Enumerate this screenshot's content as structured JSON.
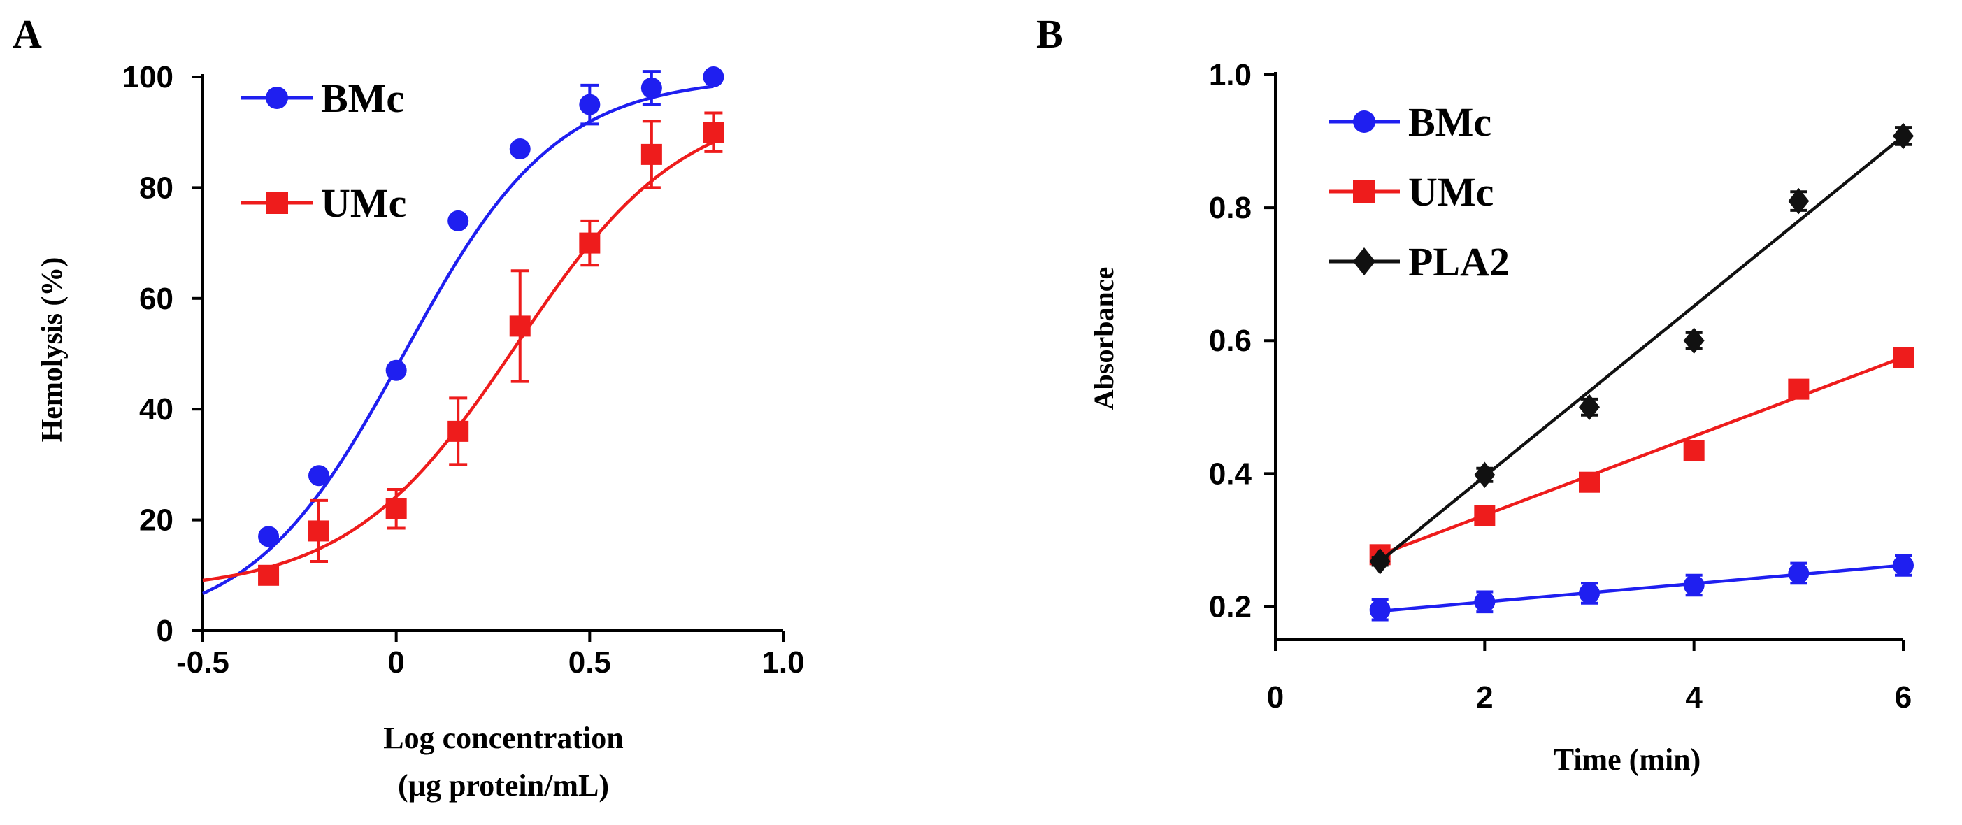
{
  "colors": {
    "bmc": "#1f1ff0",
    "umc": "#ee1c1c",
    "pla2": "#111111",
    "axis": "#000000"
  },
  "chart_data": [
    {
      "panel_label": "A",
      "type": "line",
      "title": "",
      "xlabel_line1": "Log concentration",
      "xlabel_line2": "(µg protein/mL)",
      "ylabel": "Hemolysis (%)",
      "xlim": [
        -0.5,
        1.0
      ],
      "ylim": [
        0,
        100
      ],
      "xticks": [
        -0.5,
        0,
        0.5,
        1.0
      ],
      "xtick_labels": [
        "-0.5",
        "0",
        "0.5",
        "1.0"
      ],
      "yticks": [
        0,
        20,
        40,
        60,
        80,
        100
      ],
      "ytick_labels": [
        "0",
        "20",
        "40",
        "60",
        "80",
        "100"
      ],
      "legend_position": "top-left",
      "series": [
        {
          "name": "BMc",
          "color_key": "bmc",
          "marker": "circle",
          "x": [
            -0.33,
            -0.2,
            0.0,
            0.16,
            0.32,
            0.5,
            0.66,
            0.82
          ],
          "y": [
            17,
            28,
            47,
            74,
            87,
            95,
            98,
            100
          ],
          "err": [
            0,
            0,
            0,
            0,
            0,
            3.5,
            3,
            0
          ],
          "fit": {
            "kind": "sigmoid",
            "bottom": 0,
            "top": 100,
            "logEC50": 0.02,
            "hill": 2.2,
            "x_from": -0.5,
            "x_to": 0.82
          }
        },
        {
          "name": "UMc",
          "color_key": "umc",
          "marker": "square",
          "x": [
            -0.33,
            -0.2,
            0.0,
            0.16,
            0.32,
            0.5,
            0.66,
            0.82
          ],
          "y": [
            10,
            18,
            22,
            36,
            55,
            70,
            86,
            90
          ],
          "err": [
            1.5,
            5.5,
            3.5,
            6,
            10,
            4,
            6,
            3.5
          ],
          "fit": {
            "kind": "sigmoid",
            "bottom": 7,
            "top": 96,
            "logEC50": 0.31,
            "hill": 2.0,
            "x_from": -0.5,
            "x_to": 0.82
          }
        }
      ]
    },
    {
      "panel_label": "B",
      "type": "line",
      "title": "",
      "xlabel": "Time (min)",
      "ylabel": "Absorbance",
      "xlim": [
        0,
        6
      ],
      "ylim": [
        0.15,
        1.0
      ],
      "xticks": [
        0,
        2,
        4,
        6
      ],
      "xtick_labels": [
        "0",
        "2",
        "4",
        "6"
      ],
      "yticks": [
        0.2,
        0.4,
        0.6,
        0.8,
        1.0
      ],
      "ytick_labels": [
        "0.2",
        "0.4",
        "0.6",
        "0.8",
        "1.0"
      ],
      "legend_position": "top-left",
      "series": [
        {
          "name": "BMc",
          "color_key": "bmc",
          "marker": "circle",
          "x": [
            1,
            2,
            3,
            4,
            5,
            6
          ],
          "y": [
            0.195,
            0.207,
            0.22,
            0.232,
            0.25,
            0.262
          ],
          "err": [
            0.015,
            0.015,
            0.015,
            0.015,
            0.015,
            0.015
          ],
          "fit": {
            "kind": "linear",
            "x_from": 1,
            "x_to": 6,
            "y_from": 0.193,
            "y_to": 0.262
          }
        },
        {
          "name": "UMc",
          "color_key": "umc",
          "marker": "square",
          "x": [
            1,
            2,
            3,
            4,
            5,
            6
          ],
          "y": [
            0.278,
            0.337,
            0.387,
            0.435,
            0.527,
            0.575
          ],
          "err": [
            0.008,
            0.008,
            0.008,
            0.01,
            0.01,
            0.01
          ],
          "fit": {
            "kind": "linear",
            "x_from": 1,
            "x_to": 6,
            "y_from": 0.278,
            "y_to": 0.575
          }
        },
        {
          "name": "PLA2",
          "color_key": "pla2",
          "marker": "diamond",
          "x": [
            1,
            2,
            3,
            4,
            5,
            6
          ],
          "y": [
            0.268,
            0.398,
            0.5,
            0.6,
            0.81,
            0.908
          ],
          "err": [
            0.006,
            0.01,
            0.012,
            0.012,
            0.014,
            0.013
          ],
          "fit": {
            "kind": "linear",
            "x_from": 1,
            "x_to": 6,
            "y_from": 0.268,
            "y_to": 0.908
          }
        }
      ]
    }
  ]
}
